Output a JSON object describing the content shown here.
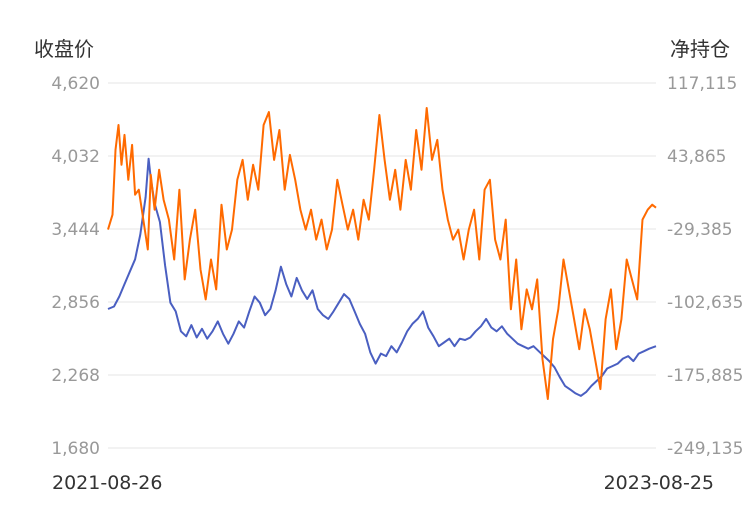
{
  "chart_data": {
    "type": "line",
    "title": "",
    "left_axis_title": "收盘价",
    "right_axis_title": "净持仓",
    "x_range": [
      "2021-08-26",
      "2023-08-25"
    ],
    "x_tick_labels": [
      "2021-08-26",
      "2023-08-25"
    ],
    "y_left": {
      "ticks": [
        "4,620",
        "4,032",
        "3,444",
        "2,856",
        "2,268",
        "1,680"
      ],
      "range": [
        1680,
        4620
      ]
    },
    "y_right": {
      "ticks": [
        "117,115",
        "43,865",
        "-29,385",
        "-102,635",
        "-175,885",
        "-249,135"
      ],
      "range": [
        -249135,
        117115
      ]
    },
    "grid": true,
    "legend": "none",
    "series": [
      {
        "axis": "left",
        "color": "#4a5fc1",
        "points": [
          [
            "2021-08-26",
            2800
          ],
          [
            "2021-09-03",
            2820
          ],
          [
            "2021-09-10",
            2900
          ],
          [
            "2021-09-17",
            3000
          ],
          [
            "2021-09-24",
            3100
          ],
          [
            "2021-10-01",
            3200
          ],
          [
            "2021-10-08",
            3400
          ],
          [
            "2021-10-15",
            3700
          ],
          [
            "2021-10-19",
            4010
          ],
          [
            "2021-10-22",
            3850
          ],
          [
            "2021-10-27",
            3650
          ],
          [
            "2021-11-03",
            3500
          ],
          [
            "2021-11-10",
            3150
          ],
          [
            "2021-11-17",
            2850
          ],
          [
            "2021-11-24",
            2780
          ],
          [
            "2021-12-01",
            2620
          ],
          [
            "2021-12-08",
            2580
          ],
          [
            "2021-12-15",
            2670
          ],
          [
            "2021-12-22",
            2570
          ],
          [
            "2021-12-29",
            2640
          ],
          [
            "2022-01-05",
            2560
          ],
          [
            "2022-01-12",
            2620
          ],
          [
            "2022-01-19",
            2700
          ],
          [
            "2022-01-26",
            2600
          ],
          [
            "2022-02-02",
            2520
          ],
          [
            "2022-02-09",
            2600
          ],
          [
            "2022-02-16",
            2700
          ],
          [
            "2022-02-23",
            2650
          ],
          [
            "2022-03-02",
            2780
          ],
          [
            "2022-03-09",
            2900
          ],
          [
            "2022-03-16",
            2850
          ],
          [
            "2022-03-23",
            2750
          ],
          [
            "2022-03-30",
            2800
          ],
          [
            "2022-04-06",
            2950
          ],
          [
            "2022-04-13",
            3140
          ],
          [
            "2022-04-20",
            3000
          ],
          [
            "2022-04-27",
            2900
          ],
          [
            "2022-05-04",
            3050
          ],
          [
            "2022-05-11",
            2950
          ],
          [
            "2022-05-18",
            2880
          ],
          [
            "2022-05-25",
            2950
          ],
          [
            "2022-06-01",
            2800
          ],
          [
            "2022-06-08",
            2750
          ],
          [
            "2022-06-15",
            2720
          ],
          [
            "2022-06-22",
            2780
          ],
          [
            "2022-06-29",
            2850
          ],
          [
            "2022-07-06",
            2920
          ],
          [
            "2022-07-13",
            2880
          ],
          [
            "2022-07-20",
            2780
          ],
          [
            "2022-07-27",
            2680
          ],
          [
            "2022-08-03",
            2600
          ],
          [
            "2022-08-10",
            2450
          ],
          [
            "2022-08-17",
            2360
          ],
          [
            "2022-08-24",
            2440
          ],
          [
            "2022-08-31",
            2420
          ],
          [
            "2022-09-07",
            2500
          ],
          [
            "2022-09-14",
            2450
          ],
          [
            "2022-09-21",
            2530
          ],
          [
            "2022-09-28",
            2620
          ],
          [
            "2022-10-05",
            2680
          ],
          [
            "2022-10-12",
            2720
          ],
          [
            "2022-10-19",
            2780
          ],
          [
            "2022-10-26",
            2650
          ],
          [
            "2022-11-02",
            2580
          ],
          [
            "2022-11-09",
            2500
          ],
          [
            "2022-11-16",
            2530
          ],
          [
            "2022-11-23",
            2560
          ],
          [
            "2022-11-30",
            2500
          ],
          [
            "2022-12-07",
            2560
          ],
          [
            "2022-12-14",
            2550
          ],
          [
            "2022-12-21",
            2570
          ],
          [
            "2022-12-28",
            2620
          ],
          [
            "2023-01-04",
            2660
          ],
          [
            "2023-01-11",
            2720
          ],
          [
            "2023-01-18",
            2650
          ],
          [
            "2023-01-25",
            2620
          ],
          [
            "2023-02-01",
            2660
          ],
          [
            "2023-02-08",
            2600
          ],
          [
            "2023-02-15",
            2560
          ],
          [
            "2023-02-22",
            2520
          ],
          [
            "2023-03-01",
            2500
          ],
          [
            "2023-03-08",
            2480
          ],
          [
            "2023-03-15",
            2500
          ],
          [
            "2023-03-22",
            2460
          ],
          [
            "2023-03-29",
            2420
          ],
          [
            "2023-04-05",
            2380
          ],
          [
            "2023-04-12",
            2330
          ],
          [
            "2023-04-19",
            2250
          ],
          [
            "2023-04-26",
            2180
          ],
          [
            "2023-05-03",
            2150
          ],
          [
            "2023-05-10",
            2120
          ],
          [
            "2023-05-17",
            2100
          ],
          [
            "2023-05-24",
            2130
          ],
          [
            "2023-05-31",
            2180
          ],
          [
            "2023-06-07",
            2220
          ],
          [
            "2023-06-14",
            2260
          ],
          [
            "2023-06-21",
            2320
          ],
          [
            "2023-06-28",
            2340
          ],
          [
            "2023-07-05",
            2360
          ],
          [
            "2023-07-12",
            2400
          ],
          [
            "2023-07-19",
            2420
          ],
          [
            "2023-07-26",
            2380
          ],
          [
            "2023-08-02",
            2440
          ],
          [
            "2023-08-09",
            2460
          ],
          [
            "2023-08-16",
            2480
          ],
          [
            "2023-08-25",
            2500
          ]
        ]
      },
      {
        "axis": "right",
        "color": "#ff6a00",
        "points": [
          [
            "2021-08-26",
            -30000
          ],
          [
            "2021-09-01",
            -15000
          ],
          [
            "2021-09-05",
            50000
          ],
          [
            "2021-09-09",
            75000
          ],
          [
            "2021-09-13",
            35000
          ],
          [
            "2021-09-17",
            65000
          ],
          [
            "2021-09-22",
            20000
          ],
          [
            "2021-09-27",
            55000
          ],
          [
            "2021-10-01",
            5000
          ],
          [
            "2021-10-06",
            10000
          ],
          [
            "2021-10-12",
            -20000
          ],
          [
            "2021-10-18",
            -50000
          ],
          [
            "2021-10-22",
            25000
          ],
          [
            "2021-10-27",
            -10000
          ],
          [
            "2021-11-02",
            30000
          ],
          [
            "2021-11-08",
            0
          ],
          [
            "2021-11-15",
            -20000
          ],
          [
            "2021-11-22",
            -60000
          ],
          [
            "2021-11-29",
            10000
          ],
          [
            "2021-12-06",
            -80000
          ],
          [
            "2021-12-13",
            -40000
          ],
          [
            "2021-12-20",
            -10000
          ],
          [
            "2021-12-27",
            -70000
          ],
          [
            "2022-01-03",
            -100000
          ],
          [
            "2022-01-10",
            -60000
          ],
          [
            "2022-01-17",
            -90000
          ],
          [
            "2022-01-24",
            -5000
          ],
          [
            "2022-01-31",
            -50000
          ],
          [
            "2022-02-07",
            -30000
          ],
          [
            "2022-02-14",
            20000
          ],
          [
            "2022-02-21",
            40000
          ],
          [
            "2022-02-28",
            0
          ],
          [
            "2022-03-07",
            35000
          ],
          [
            "2022-03-14",
            10000
          ],
          [
            "2022-03-21",
            75000
          ],
          [
            "2022-03-28",
            88000
          ],
          [
            "2022-04-04",
            40000
          ],
          [
            "2022-04-11",
            70000
          ],
          [
            "2022-04-18",
            10000
          ],
          [
            "2022-04-25",
            45000
          ],
          [
            "2022-05-02",
            20000
          ],
          [
            "2022-05-09",
            -10000
          ],
          [
            "2022-05-16",
            -30000
          ],
          [
            "2022-05-23",
            -10000
          ],
          [
            "2022-05-30",
            -40000
          ],
          [
            "2022-06-06",
            -20000
          ],
          [
            "2022-06-13",
            -50000
          ],
          [
            "2022-06-20",
            -30000
          ],
          [
            "2022-06-27",
            20000
          ],
          [
            "2022-07-04",
            -5000
          ],
          [
            "2022-07-11",
            -30000
          ],
          [
            "2022-07-18",
            -10000
          ],
          [
            "2022-07-25",
            -40000
          ],
          [
            "2022-08-01",
            0
          ],
          [
            "2022-08-08",
            -20000
          ],
          [
            "2022-08-15",
            30000
          ],
          [
            "2022-08-22",
            85000
          ],
          [
            "2022-08-29",
            40000
          ],
          [
            "2022-09-05",
            0
          ],
          [
            "2022-09-12",
            30000
          ],
          [
            "2022-09-19",
            -10000
          ],
          [
            "2022-09-26",
            40000
          ],
          [
            "2022-10-03",
            10000
          ],
          [
            "2022-10-10",
            70000
          ],
          [
            "2022-10-17",
            30000
          ],
          [
            "2022-10-24",
            92000
          ],
          [
            "2022-10-31",
            40000
          ],
          [
            "2022-11-07",
            60000
          ],
          [
            "2022-11-14",
            10000
          ],
          [
            "2022-11-21",
            -20000
          ],
          [
            "2022-11-28",
            -40000
          ],
          [
            "2022-12-05",
            -30000
          ],
          [
            "2022-12-12",
            -60000
          ],
          [
            "2022-12-19",
            -30000
          ],
          [
            "2022-12-26",
            -10000
          ],
          [
            "2023-01-02",
            -60000
          ],
          [
            "2023-01-09",
            10000
          ],
          [
            "2023-01-16",
            20000
          ],
          [
            "2023-01-23",
            -40000
          ],
          [
            "2023-01-30",
            -60000
          ],
          [
            "2023-02-06",
            -20000
          ],
          [
            "2023-02-13",
            -110000
          ],
          [
            "2023-02-20",
            -60000
          ],
          [
            "2023-02-27",
            -130000
          ],
          [
            "2023-03-06",
            -90000
          ],
          [
            "2023-03-13",
            -110000
          ],
          [
            "2023-03-20",
            -80000
          ],
          [
            "2023-03-27",
            -160000
          ],
          [
            "2023-04-03",
            -200000
          ],
          [
            "2023-04-10",
            -140000
          ],
          [
            "2023-04-17",
            -110000
          ],
          [
            "2023-04-24",
            -60000
          ],
          [
            "2023-05-01",
            -90000
          ],
          [
            "2023-05-08",
            -120000
          ],
          [
            "2023-05-15",
            -150000
          ],
          [
            "2023-05-22",
            -110000
          ],
          [
            "2023-05-29",
            -130000
          ],
          [
            "2023-06-05",
            -160000
          ],
          [
            "2023-06-12",
            -190000
          ],
          [
            "2023-06-19",
            -120000
          ],
          [
            "2023-06-26",
            -90000
          ],
          [
            "2023-07-03",
            -150000
          ],
          [
            "2023-07-10",
            -120000
          ],
          [
            "2023-07-17",
            -60000
          ],
          [
            "2023-07-24",
            -80000
          ],
          [
            "2023-07-31",
            -100000
          ],
          [
            "2023-08-07",
            -20000
          ],
          [
            "2023-08-14",
            -10000
          ],
          [
            "2023-08-20",
            -5000
          ],
          [
            "2023-08-25",
            -8000
          ]
        ]
      }
    ]
  }
}
